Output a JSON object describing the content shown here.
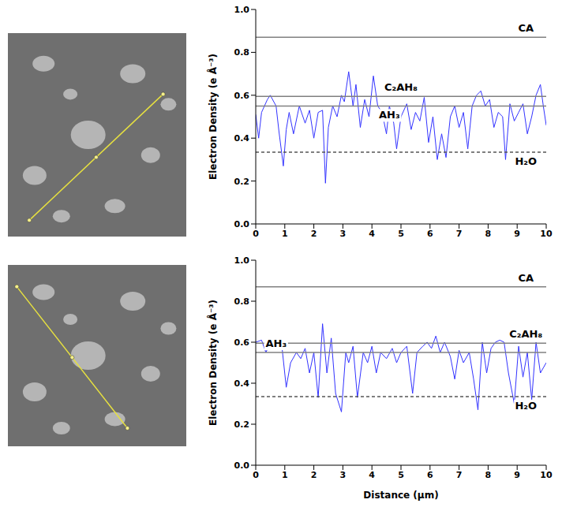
{
  "chart_data": [
    {
      "type": "line",
      "ylabel": "Electron Density (e Å⁻³)",
      "color": "#3333ff",
      "x": [
        0,
        0.1,
        0.2,
        0.4,
        0.5,
        0.7,
        0.8,
        0.95,
        1.05,
        1.15,
        1.3,
        1.5,
        1.7,
        1.85,
        2.0,
        2.15,
        2.3,
        2.4,
        2.5,
        2.65,
        2.8,
        2.95,
        3.05,
        3.2,
        3.35,
        3.45,
        3.6,
        3.75,
        3.9,
        4.05,
        4.2,
        4.35,
        4.5,
        4.6,
        4.75,
        4.85,
        5.0,
        5.2,
        5.35,
        5.5,
        5.65,
        5.8,
        5.95,
        6.1,
        6.25,
        6.4,
        6.55,
        6.7,
        6.85,
        7.0,
        7.15,
        7.3,
        7.45,
        7.6,
        7.75,
        7.9,
        8.05,
        8.2,
        8.35,
        8.5,
        8.6,
        8.75,
        8.9,
        9.05,
        9.2,
        9.35,
        9.5,
        9.65,
        9.8,
        9.9,
        10
      ],
      "values": [
        0.51,
        0.4,
        0.52,
        0.58,
        0.6,
        0.55,
        0.43,
        0.27,
        0.44,
        0.52,
        0.42,
        0.55,
        0.47,
        0.53,
        0.4,
        0.52,
        0.53,
        0.19,
        0.45,
        0.55,
        0.5,
        0.6,
        0.57,
        0.71,
        0.55,
        0.65,
        0.45,
        0.58,
        0.5,
        0.69,
        0.55,
        0.52,
        0.42,
        0.55,
        0.47,
        0.35,
        0.5,
        0.56,
        0.44,
        0.52,
        0.48,
        0.59,
        0.38,
        0.5,
        0.3,
        0.42,
        0.31,
        0.5,
        0.55,
        0.45,
        0.52,
        0.35,
        0.55,
        0.6,
        0.62,
        0.55,
        0.58,
        0.45,
        0.52,
        0.5,
        0.3,
        0.56,
        0.48,
        0.52,
        0.56,
        0.42,
        0.5,
        0.6,
        0.65,
        0.55,
        0.46
      ],
      "xlim": [
        0,
        10
      ],
      "xticks": [
        0,
        1,
        2,
        3,
        4,
        5,
        6,
        7,
        8,
        9,
        10
      ],
      "ylim": [
        0,
        1
      ],
      "yticks": [
        {
          "value": 0,
          "label": "0.0"
        },
        {
          "value": 0.2,
          "label": "0.2"
        },
        {
          "value": 0.4,
          "label": "0.4"
        },
        {
          "value": 0.6,
          "label": "0.6"
        },
        {
          "value": 0.8,
          "label": "0.8"
        },
        {
          "value": 1,
          "label": "1.0"
        }
      ],
      "reference_lines": [
        {
          "value": 0.87,
          "label": "CA",
          "color": "#808080",
          "line_style": "solid"
        },
        {
          "value": 0.595,
          "label": "C₂AH₈",
          "color": "#808080",
          "line_style": "solid"
        },
        {
          "value": 0.55,
          "label": "AH₃",
          "color": "#808080",
          "line_style": "solid"
        },
        {
          "value": 0.335,
          "label": "H₂O",
          "color": "#555555",
          "line_style": "dashed"
        }
      ]
    },
    {
      "type": "line",
      "ylabel": "Electron Density (e Å⁻³)",
      "xlabel": "Distance (µm)",
      "color": "#3333ff",
      "x": [
        0,
        0.2,
        0.35,
        0.5,
        0.7,
        0.9,
        1.05,
        1.2,
        1.4,
        1.55,
        1.7,
        1.85,
        2.0,
        2.15,
        2.3,
        2.45,
        2.6,
        2.75,
        2.95,
        3.1,
        3.2,
        3.35,
        3.5,
        3.7,
        3.85,
        4.0,
        4.15,
        4.3,
        4.5,
        4.7,
        4.85,
        5.0,
        5.2,
        5.4,
        5.55,
        5.75,
        5.9,
        6.05,
        6.2,
        6.35,
        6.5,
        6.7,
        6.85,
        7.0,
        7.15,
        7.35,
        7.5,
        7.65,
        7.8,
        7.95,
        8.1,
        8.25,
        8.4,
        8.55,
        8.7,
        8.9,
        9.05,
        9.2,
        9.35,
        9.5,
        9.65,
        9.8,
        10
      ],
      "values": [
        0.6,
        0.61,
        0.55,
        0.6,
        0.6,
        0.58,
        0.38,
        0.5,
        0.55,
        0.52,
        0.57,
        0.45,
        0.55,
        0.33,
        0.69,
        0.45,
        0.62,
        0.35,
        0.26,
        0.55,
        0.5,
        0.58,
        0.33,
        0.55,
        0.5,
        0.58,
        0.45,
        0.55,
        0.52,
        0.57,
        0.5,
        0.55,
        0.58,
        0.35,
        0.55,
        0.58,
        0.6,
        0.57,
        0.63,
        0.55,
        0.6,
        0.53,
        0.42,
        0.56,
        0.5,
        0.55,
        0.42,
        0.27,
        0.6,
        0.45,
        0.57,
        0.6,
        0.61,
        0.6,
        0.45,
        0.3,
        0.58,
        0.43,
        0.55,
        0.32,
        0.6,
        0.45,
        0.5
      ],
      "xlim": [
        0,
        10
      ],
      "xticks": [
        0,
        1,
        2,
        3,
        4,
        5,
        6,
        7,
        8,
        9,
        10
      ],
      "ylim": [
        0,
        1
      ],
      "yticks": [
        {
          "value": 0,
          "label": "0.0"
        },
        {
          "value": 0.2,
          "label": "0.2"
        },
        {
          "value": 0.4,
          "label": "0.4"
        },
        {
          "value": 0.6,
          "label": "0.6"
        },
        {
          "value": 0.8,
          "label": "0.8"
        },
        {
          "value": 1,
          "label": "1.0"
        }
      ],
      "reference_lines": [
        {
          "value": 0.87,
          "label": "CA",
          "color": "#808080",
          "line_style": "solid"
        },
        {
          "value": 0.595,
          "label": "C₂AH₈",
          "color": "#808080",
          "line_style": "solid"
        },
        {
          "value": 0.55,
          "label": "AH₃",
          "color": "#808080",
          "line_style": "solid"
        },
        {
          "value": 0.335,
          "label": "H₂O",
          "color": "#555555",
          "line_style": "dashed"
        }
      ]
    }
  ]
}
